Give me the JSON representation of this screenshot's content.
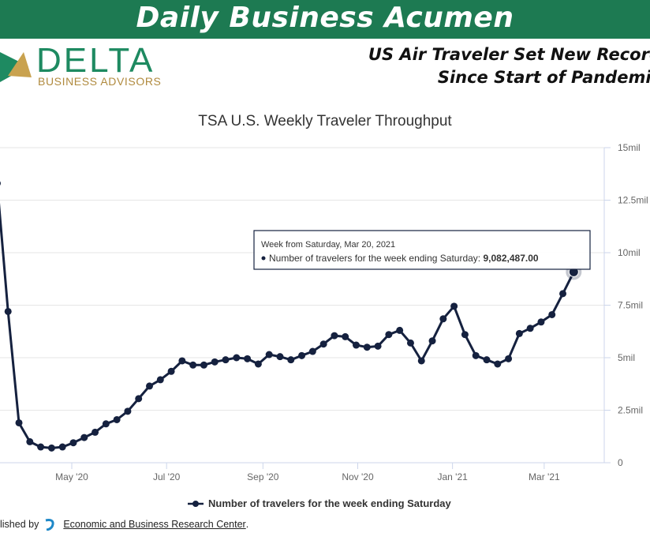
{
  "banner": {
    "title": "Daily Business Acumen"
  },
  "logo": {
    "name": "DELTA",
    "subtitle": "BUSINESS ADVISORS"
  },
  "headline": {
    "line1": "US Air Traveler Set New Record",
    "line2": "Since Start of Pandemic"
  },
  "footer": {
    "prefix": "lished by",
    "link_text": "Economic and Business Research Center",
    "suffix": "."
  },
  "colors": {
    "banner": "#1d7a52",
    "series": "#15213f",
    "logo_green": "#1e8a61",
    "logo_gold": "#b08a3e"
  },
  "chart_data": {
    "type": "line",
    "title": "TSA U.S. Weekly Traveler Throughput",
    "ylim": [
      0,
      15000000
    ],
    "y_ticks": [
      {
        "value": 0,
        "label": "0"
      },
      {
        "value": 2500000,
        "label": "2.5mil"
      },
      {
        "value": 5000000,
        "label": "5mil"
      },
      {
        "value": 7500000,
        "label": "7.5mil"
      },
      {
        "value": 10000000,
        "label": "10mil"
      },
      {
        "value": 12500000,
        "label": "12.5mil"
      },
      {
        "value": 15000000,
        "label": "15mil"
      }
    ],
    "x_ticks": [
      "May '20",
      "Jul '20",
      "Sep '20",
      "Nov '20",
      "Jan '21",
      "Mar '21"
    ],
    "x_tick_dates": [
      "2020-05-01",
      "2020-07-01",
      "2020-09-01",
      "2020-11-01",
      "2021-01-01",
      "2021-03-01"
    ],
    "grid": true,
    "legend_position": "bottom",
    "series": [
      {
        "name": "Number of travelers for the week ending Saturday",
        "x": [
          "2020-03-14",
          "2020-03-21",
          "2020-03-28",
          "2020-04-04",
          "2020-04-11",
          "2020-04-18",
          "2020-04-25",
          "2020-05-02",
          "2020-05-09",
          "2020-05-16",
          "2020-05-23",
          "2020-05-30",
          "2020-06-06",
          "2020-06-13",
          "2020-06-20",
          "2020-06-27",
          "2020-07-04",
          "2020-07-11",
          "2020-07-18",
          "2020-07-25",
          "2020-08-01",
          "2020-08-08",
          "2020-08-15",
          "2020-08-22",
          "2020-08-29",
          "2020-09-05",
          "2020-09-12",
          "2020-09-19",
          "2020-09-26",
          "2020-10-03",
          "2020-10-10",
          "2020-10-17",
          "2020-10-24",
          "2020-10-31",
          "2020-11-07",
          "2020-11-14",
          "2020-11-21",
          "2020-11-28",
          "2020-12-05",
          "2020-12-12",
          "2020-12-19",
          "2020-12-26",
          "2021-01-02",
          "2021-01-09",
          "2021-01-16",
          "2021-01-23",
          "2021-01-30",
          "2021-02-06",
          "2021-02-13",
          "2021-02-20",
          "2021-02-27",
          "2021-03-06",
          "2021-03-13",
          "2021-03-20"
        ],
        "values": [
          13300000,
          7200000,
          1900000,
          1000000,
          750000,
          700000,
          750000,
          950000,
          1200000,
          1450000,
          1850000,
          2050000,
          2450000,
          3050000,
          3650000,
          3950000,
          4350000,
          4850000,
          4650000,
          4650000,
          4800000,
          4900000,
          5000000,
          4950000,
          4700000,
          5150000,
          5050000,
          4900000,
          5100000,
          5300000,
          5650000,
          6050000,
          6000000,
          5600000,
          5500000,
          5550000,
          6100000,
          6300000,
          5700000,
          4850000,
          5800000,
          6850000,
          7450000,
          6100000,
          5100000,
          4900000,
          4700000,
          4950000,
          6150000,
          6400000,
          6700000,
          7050000,
          8050000,
          9082487
        ]
      }
    ],
    "tooltip": {
      "header": "Week from Saturday, Mar 20, 2021",
      "label": "Number of travelers for the week ending Saturday:",
      "value": "9,082,487.00"
    }
  }
}
